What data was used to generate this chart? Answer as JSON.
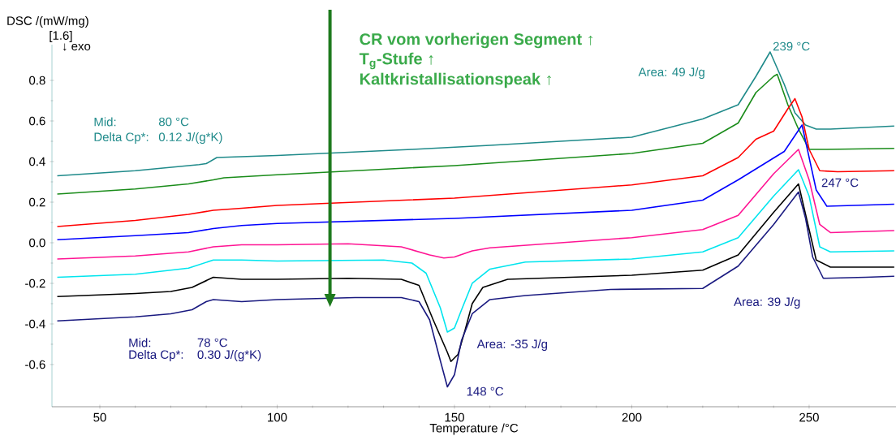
{
  "chart_data": {
    "type": "line",
    "xlabel": "Temperature /°C",
    "ylabel": "DSC /(mW/mg)",
    "xlim": [
      36.5,
      274.5
    ],
    "ylim": [
      -0.808,
      0.976
    ],
    "xticks": [
      50,
      100,
      150,
      200,
      250
    ],
    "yticks": [
      -0.6,
      -0.4,
      -0.2,
      {
        "value": 0,
        "label": "0.0"
      },
      0.2,
      0.4,
      0.6,
      0.8
    ],
    "marker": "none",
    "line_style": "solid",
    "annotations": [
      "[1.6]",
      "↓ exo",
      "CR vom vorherigen Segment ↑",
      "T$_{g}$-Stufe ↑",
      "Kaltkristallisationspeak ↑",
      "Area:  49 J/g",
      "239 °C",
      "Mid:",
      "80 °C",
      "Delta Cp*:",
      "0.12 J/(g*K)",
      "Mid:",
      "78 °C",
      "Delta Cp*:",
      "0.30 J/(g*K)",
      "Area:  -35 J/g",
      "148 °C",
      "Area:  39 J/g",
      "247 °C"
    ],
    "series": [
      {
        "color": "#1f8a8a",
        "x": [
          38,
          60,
          78,
          80,
          83,
          100,
          138,
          160,
          200,
          220,
          230,
          235,
          239,
          243,
          246,
          249,
          252,
          256,
          274
        ],
        "values": [
          0.33,
          0.355,
          0.385,
          0.39,
          0.42,
          0.43,
          0.46,
          0.48,
          0.52,
          0.61,
          0.68,
          0.82,
          0.94,
          0.78,
          0.64,
          0.58,
          0.56,
          0.56,
          0.575
        ]
      },
      {
        "color": "#1a8c1a",
        "x": [
          38,
          60,
          75,
          82,
          85,
          100,
          150,
          200,
          220,
          230,
          235,
          240,
          241,
          244,
          247,
          250,
          255,
          274
        ],
        "values": [
          0.24,
          0.265,
          0.29,
          0.31,
          0.32,
          0.335,
          0.38,
          0.44,
          0.49,
          0.59,
          0.74,
          0.82,
          0.83,
          0.68,
          0.56,
          0.46,
          0.46,
          0.465
        ]
      },
      {
        "color": "#ff0000",
        "x": [
          38,
          60,
          75,
          82,
          90,
          100,
          150,
          200,
          220,
          230,
          235,
          240,
          244,
          246,
          248,
          250,
          253,
          258,
          274
        ],
        "values": [
          0.08,
          0.11,
          0.14,
          0.16,
          0.17,
          0.184,
          0.22,
          0.285,
          0.33,
          0.42,
          0.51,
          0.55,
          0.66,
          0.71,
          0.62,
          0.46,
          0.355,
          0.35,
          0.355
        ]
      },
      {
        "color": "#0000ff",
        "x": [
          38,
          60,
          75,
          82,
          90,
          100,
          150,
          200,
          220,
          230,
          243,
          248,
          250,
          252,
          255,
          274
        ],
        "values": [
          0.015,
          0.035,
          0.05,
          0.07,
          0.085,
          0.095,
          0.12,
          0.16,
          0.21,
          0.31,
          0.45,
          0.58,
          0.42,
          0.26,
          0.18,
          0.19
        ]
      },
      {
        "color": "#ff1493",
        "x": [
          38,
          60,
          75,
          82,
          90,
          100,
          120,
          135,
          143,
          147,
          150,
          155,
          160,
          200,
          220,
          230,
          240,
          247,
          250,
          253,
          256,
          274
        ],
        "values": [
          -0.08,
          -0.065,
          -0.045,
          -0.02,
          -0.01,
          -0.01,
          -0.005,
          -0.02,
          -0.06,
          -0.075,
          -0.07,
          -0.04,
          -0.025,
          0.025,
          0.065,
          0.135,
          0.34,
          0.46,
          0.31,
          0.09,
          0.05,
          0.06
        ]
      },
      {
        "color": "#00e5ee",
        "x": [
          38,
          60,
          75,
          82,
          90,
          100,
          130,
          138,
          142,
          146,
          148,
          150,
          152,
          155,
          160,
          170,
          200,
          220,
          230,
          240,
          247,
          250,
          253,
          256,
          274
        ],
        "values": [
          -0.17,
          -0.155,
          -0.125,
          -0.085,
          -0.085,
          -0.09,
          -0.085,
          -0.1,
          -0.15,
          -0.32,
          -0.44,
          -0.42,
          -0.33,
          -0.2,
          -0.13,
          -0.095,
          -0.08,
          -0.045,
          0.025,
          0.23,
          0.36,
          0.23,
          -0.02,
          -0.045,
          -0.04
        ]
      },
      {
        "color": "#000000",
        "x": [
          38,
          60,
          70,
          76,
          82,
          90,
          100,
          120,
          135,
          140,
          144,
          148,
          149,
          151,
          153,
          155,
          158,
          165,
          200,
          220,
          230,
          240,
          247,
          250,
          252,
          256,
          274
        ],
        "values": [
          -0.265,
          -0.25,
          -0.24,
          -0.22,
          -0.17,
          -0.18,
          -0.18,
          -0.175,
          -0.18,
          -0.21,
          -0.38,
          -0.54,
          -0.585,
          -0.55,
          -0.43,
          -0.3,
          -0.22,
          -0.18,
          -0.16,
          -0.135,
          -0.06,
          0.15,
          0.29,
          0.065,
          -0.085,
          -0.12,
          -0.12
        ]
      },
      {
        "color": "#1a1a80",
        "x": [
          38,
          60,
          70,
          76,
          80,
          82,
          90,
          100,
          122,
          135,
          140,
          143,
          146,
          148,
          150,
          152,
          155,
          160,
          170,
          194,
          220,
          230,
          240,
          247,
          249,
          251,
          254,
          266,
          274
        ],
        "values": [
          -0.385,
          -0.365,
          -0.35,
          -0.33,
          -0.29,
          -0.28,
          -0.29,
          -0.28,
          -0.27,
          -0.27,
          -0.29,
          -0.38,
          -0.58,
          -0.71,
          -0.65,
          -0.48,
          -0.35,
          -0.28,
          -0.26,
          -0.23,
          -0.225,
          -0.115,
          0.09,
          0.25,
          0.12,
          -0.07,
          -0.175,
          -0.17,
          -0.165
        ]
      }
    ]
  }
}
